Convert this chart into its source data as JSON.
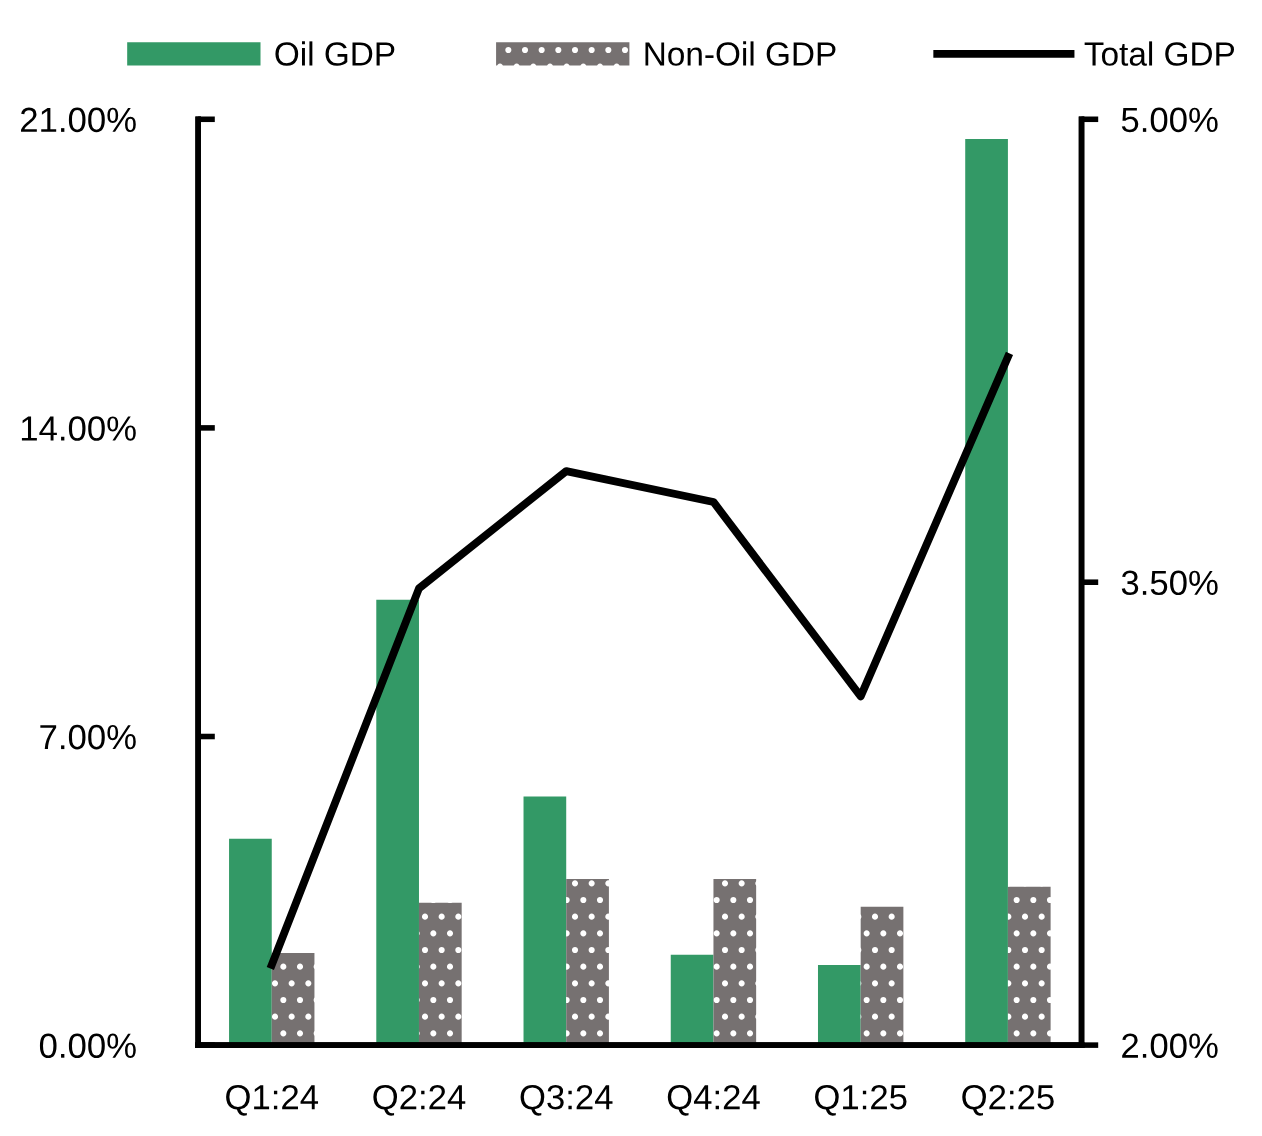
{
  "chart_data": {
    "type": "bar",
    "categories": [
      "Q1:24",
      "Q2:24",
      "Q3:24",
      "Q4:24",
      "Q1:25",
      "Q2:25"
    ],
    "series": [
      {
        "name": "Oil GDP",
        "color": "#339966",
        "values": [
          4.68,
          10.1,
          5.64,
          2.05,
          1.82,
          20.55
        ]
      },
      {
        "name": "Non-Oil GDP",
        "color": "#767171",
        "values": [
          2.09,
          3.23,
          3.77,
          3.77,
          3.14,
          3.59
        ]
      },
      {
        "name": "Total GDP",
        "type": "line",
        "axis": "y2",
        "color": "#000000",
        "values": [
          2.26,
          3.48,
          3.86,
          3.76,
          3.13,
          4.23
        ]
      }
    ],
    "ylim": [
      0,
      21
    ],
    "yticks": [
      {
        "value": 0,
        "label": "0.00%"
      },
      {
        "value": 7,
        "label": "7.00%"
      },
      {
        "value": 14,
        "label": "14.00%"
      },
      {
        "value": 21,
        "label": "21.00%"
      }
    ],
    "y2lim": [
      2,
      5
    ],
    "y2ticks": [
      {
        "value": 2,
        "label": "2.00%"
      },
      {
        "value": 3.5,
        "label": "3.50%"
      },
      {
        "value": 5,
        "label": "5.00%"
      }
    ],
    "legend": "top",
    "grid": false,
    "marker": "none",
    "line_style": "solid"
  }
}
